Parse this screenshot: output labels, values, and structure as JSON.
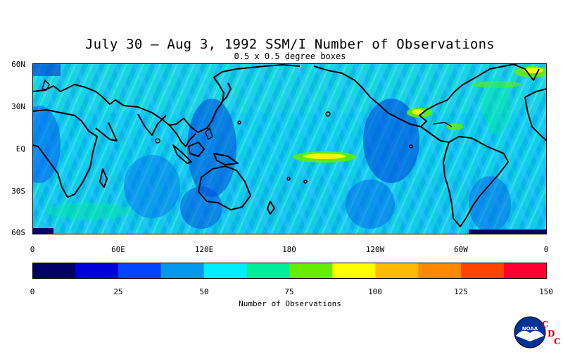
{
  "map": {
    "title": "July 30 – Aug 3, 1992 SSM/I Number of Observations",
    "subtitle": "0.5 x 0.5 degree boxes",
    "lat_labels": [
      "60N",
      "30N",
      "EQ",
      "30S",
      "60S"
    ],
    "lon_labels": [
      "0",
      "60E",
      "120E",
      "180",
      "120W",
      "60W",
      "0"
    ]
  },
  "colorbar": {
    "title": "Number of Observations",
    "tick_labels": [
      "0",
      "25",
      "50",
      "75",
      "100",
      "125",
      "150"
    ],
    "colors": [
      "#000066",
      "#0000dd",
      "#0044ff",
      "#0099ee",
      "#00eeff",
      "#00ee99",
      "#66ee00",
      "#ffff00",
      "#ffbb00",
      "#ff8800",
      "#ff4400",
      "#ff0033"
    ]
  },
  "logo": {
    "text": "NOAA",
    "letters": [
      "C",
      "D",
      "C"
    ]
  }
}
